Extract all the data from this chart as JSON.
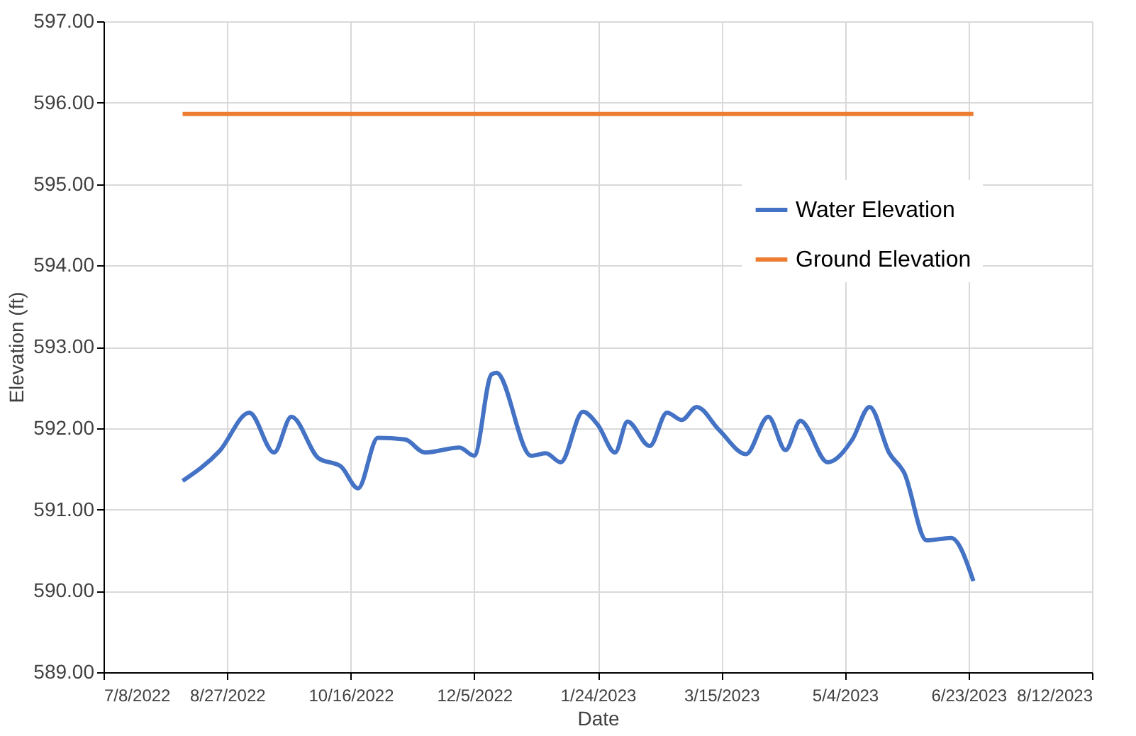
{
  "chart_data": {
    "type": "line",
    "xlabel": "Date",
    "ylabel": "Elevation (ft)",
    "xlim": [
      "2022-07-08",
      "2023-08-12"
    ],
    "xticks": [
      {
        "value": "2022-07-08",
        "label": "7/8/2022"
      },
      {
        "value": "2022-08-27",
        "label": "8/27/2022"
      },
      {
        "value": "2022-10-16",
        "label": "10/16/2022"
      },
      {
        "value": "2022-12-05",
        "label": "12/5/2022"
      },
      {
        "value": "2023-01-24",
        "label": "1/24/2023"
      },
      {
        "value": "2023-03-15",
        "label": "3/15/2023"
      },
      {
        "value": "2023-05-04",
        "label": "5/4/2023"
      },
      {
        "value": "2023-06-23",
        "label": "6/23/2023"
      },
      {
        "value": "2023-08-12",
        "label": "8/12/2023"
      }
    ],
    "ylim": [
      589,
      597
    ],
    "yticks": [
      {
        "value": 589,
        "label": "589.00"
      },
      {
        "value": 590,
        "label": "590.00"
      },
      {
        "value": 591,
        "label": "591.00"
      },
      {
        "value": 592,
        "label": "592.00"
      },
      {
        "value": 593,
        "label": "593.00"
      },
      {
        "value": 594,
        "label": "594.00"
      },
      {
        "value": 595,
        "label": "595.00"
      },
      {
        "value": 596,
        "label": "596.00"
      },
      {
        "value": 597,
        "label": "597.00"
      }
    ],
    "grid": true,
    "legend": "top right",
    "line_style": "solid",
    "marker": "none",
    "series": [
      {
        "name": "Water Elevation",
        "color": "#4472c4",
        "x": [
          "2022-08-09",
          "2022-08-24",
          "2022-09-05",
          "2022-09-15",
          "2022-09-22",
          "2022-10-03",
          "2022-10-12",
          "2022-10-19",
          "2022-10-27",
          "2022-11-07",
          "2022-11-15",
          "2022-11-29",
          "2022-12-05",
          "2022-12-12",
          "2022-12-14",
          "2022-12-28",
          "2023-01-03",
          "2023-01-09",
          "2023-01-18",
          "2023-01-24",
          "2023-01-31",
          "2023-02-05",
          "2023-02-14",
          "2023-02-21",
          "2023-02-27",
          "2023-03-05",
          "2023-03-14",
          "2023-03-25",
          "2023-04-03",
          "2023-04-10",
          "2023-04-16",
          "2023-04-27",
          "2023-05-07",
          "2023-05-14",
          "2023-05-22",
          "2023-05-28",
          "2023-06-06",
          "2023-06-16",
          "2023-06-25"
        ],
        "values": [
          591.35,
          591.72,
          592.19,
          591.7,
          592.14,
          591.63,
          591.53,
          591.26,
          591.88,
          591.86,
          591.7,
          591.76,
          591.66,
          592.66,
          592.68,
          591.66,
          591.69,
          591.58,
          592.2,
          592.04,
          591.7,
          592.08,
          591.78,
          592.19,
          592.1,
          592.26,
          591.98,
          591.68,
          592.14,
          591.73,
          592.09,
          591.58,
          591.86,
          592.26,
          591.69,
          591.45,
          590.62,
          590.65,
          590.12
        ]
      },
      {
        "name": "Ground Elevation",
        "color": "#ed7d31",
        "x": [
          "2022-08-09",
          "2023-06-25"
        ],
        "values": [
          595.86,
          595.86
        ]
      }
    ]
  }
}
